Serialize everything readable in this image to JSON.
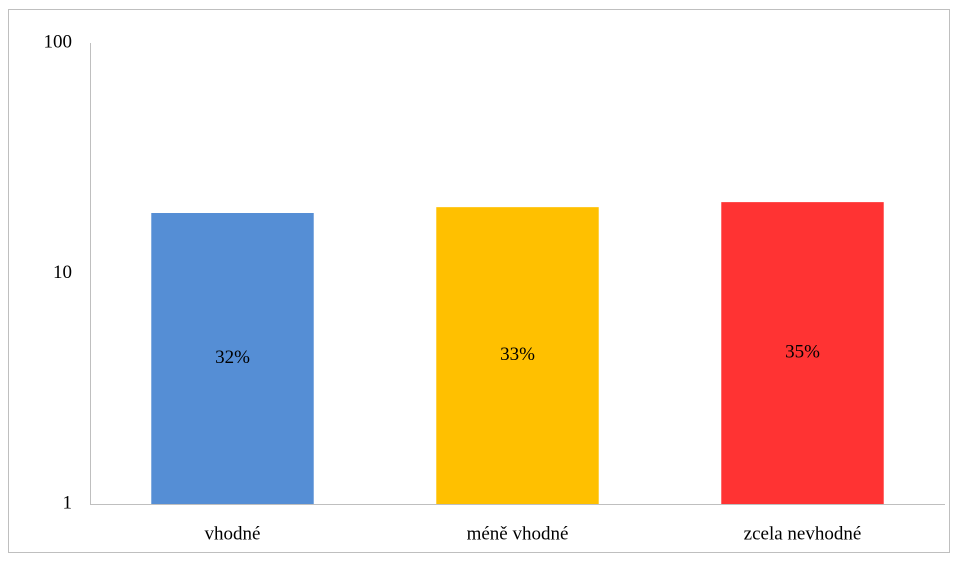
{
  "chart_data": {
    "type": "bar",
    "categories": [
      "vhodné",
      "méně vhodné",
      "zcela nevhodné"
    ],
    "values": [
      18.3,
      19.4,
      20.4
    ],
    "percent_labels": [
      "32%",
      "33%",
      "35%"
    ],
    "colors": [
      "#558ed5",
      "#ffc000",
      "#ff3333"
    ],
    "log_scale": true,
    "ylim": [
      1,
      100
    ],
    "yticks": [
      1,
      10,
      100
    ],
    "grid": false
  }
}
